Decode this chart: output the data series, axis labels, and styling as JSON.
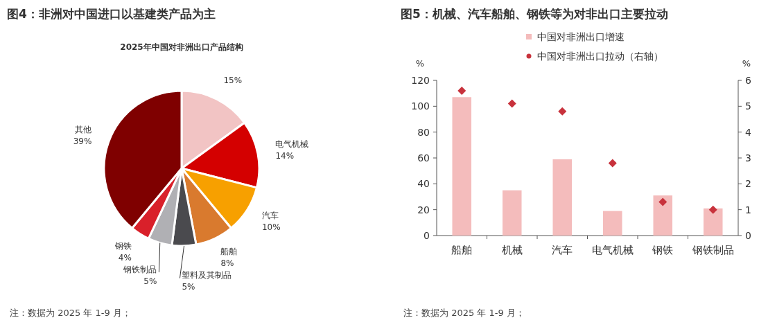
{
  "chart_data": [
    {
      "type": "pie",
      "title": "图4：非洲对中国进口以基建类产品为主",
      "subtitle": "2025年中国对非洲出口产品结构",
      "categories": [
        null,
        "电气机械",
        "汽车",
        "船舶",
        "塑料及其制品",
        "钢铁制品",
        "钢铁",
        "其他"
      ],
      "values": [
        15,
        14,
        10,
        8,
        5,
        5,
        4,
        39
      ],
      "colors": [
        "#f2c4c4",
        "#d40000",
        "#f7a000",
        "#d97a2e",
        "#4a4a4e",
        "#b0b0b4",
        "#d9202a",
        "#7f0000"
      ],
      "value_labels": [
        "15%",
        "14%",
        "10%",
        "8%",
        "5%",
        "5%",
        "4%",
        "39%"
      ],
      "annotations": [
        "注：数据为 2025 年 1-9 月；"
      ]
    },
    {
      "type": "bar",
      "title": "图5：机械、汽车船舶、钢铁等为对非出口主要拉动",
      "categories": [
        "船舶",
        "机械",
        "汽车",
        "电气机械",
        "钢铁",
        "钢铁制品"
      ],
      "series": [
        {
          "name": "中国对非洲出口增速",
          "type": "bar",
          "color": "#f4bcbc",
          "values": [
            107,
            35,
            59,
            19,
            31,
            21
          ]
        },
        {
          "name": "中国对非洲出口拉动（右轴）",
          "type": "scatter",
          "axis": "y2",
          "marker": "diamond",
          "color": "#c8323c",
          "values": [
            5.6,
            5.1,
            4.8,
            2.8,
            1.3,
            1.0
          ]
        }
      ],
      "ylabel": "%",
      "y2label": "%",
      "ylim": [
        0,
        120
      ],
      "yticks": [
        0,
        20,
        40,
        60,
        80,
        100,
        120
      ],
      "y2lim": [
        0,
        6
      ],
      "y2ticks": [
        0,
        1,
        2,
        3,
        4,
        5,
        6
      ],
      "legend": "top",
      "annotations": [
        "注：数据为 2025 年 1-9 月；"
      ]
    }
  ]
}
